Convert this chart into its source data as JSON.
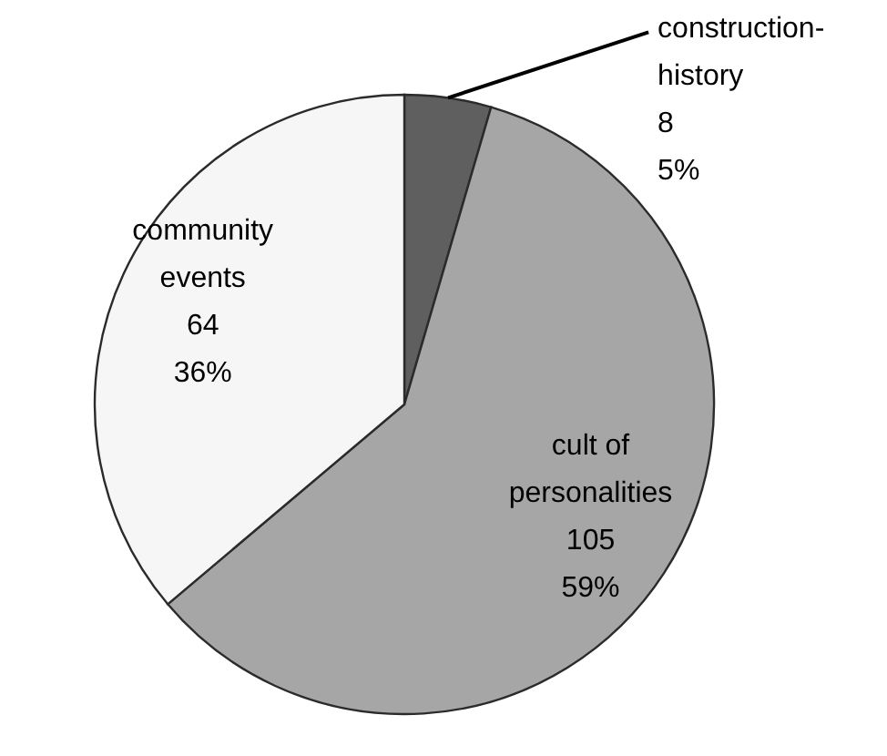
{
  "chart_data": {
    "type": "pie",
    "categories": [
      "construction-history",
      "cult of personalities",
      "community events"
    ],
    "values": [
      8,
      105,
      64
    ],
    "colors": [
      "#5f5f5f",
      "#a6a6a6",
      "#f6f6f6"
    ],
    "value_labels": [
      "8\n5%",
      "105\n59%",
      "64\n36%"
    ]
  }
}
